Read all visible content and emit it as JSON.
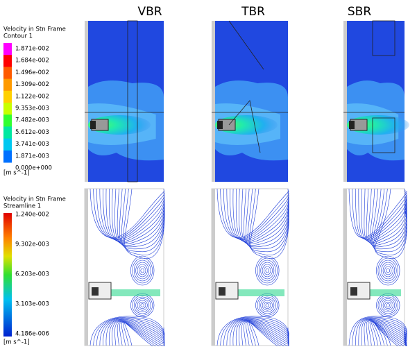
{
  "column_labels": [
    "VBR",
    "TBR",
    "SBR"
  ],
  "legends": [
    {
      "title": "Velocity in Stn Frame",
      "subtitle": "Contour 1",
      "ticks": [
        "1.871e-002",
        "1.684e-002",
        "1.496e-002",
        "1.309e-002",
        "1.122e-002",
        "9.353e-003",
        "7.482e-003",
        "5.612e-003",
        "3.741e-003",
        "1.871e-003",
        "0.000e+000"
      ],
      "unit": "[m s^-1]"
    },
    {
      "title": "Velocity in Stn Frame",
      "subtitle": "Streamline 1",
      "ticks": [
        "1.240e-002",
        "9.302e-003",
        "6.203e-003",
        "3.103e-003",
        "4.186e-006"
      ],
      "unit": "[m s^-1]"
    }
  ]
}
